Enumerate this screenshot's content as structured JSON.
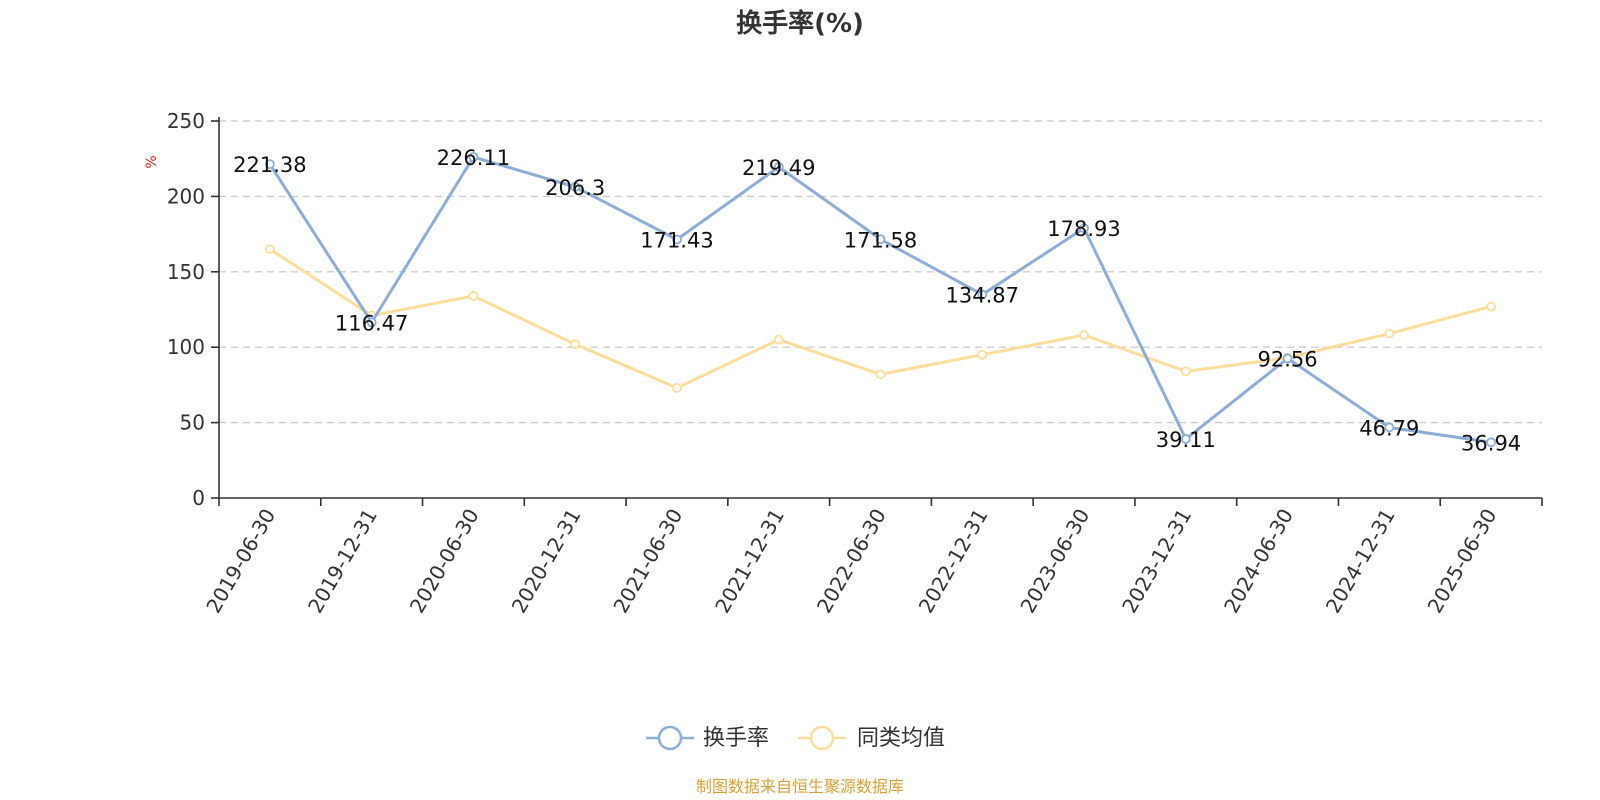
{
  "chart_data": {
    "type": "line",
    "title": "换手率(%)",
    "ylabel": "%",
    "xlabel": "",
    "ylim": [
      0,
      250
    ],
    "yticks": [
      0,
      50,
      100,
      150,
      200,
      250
    ],
    "grid": true,
    "legend_position": "bottom-center",
    "categories": [
      "2019-06-30",
      "2019-12-31",
      "2020-06-30",
      "2020-12-31",
      "2021-06-30",
      "2021-12-31",
      "2022-06-30",
      "2022-12-31",
      "2023-06-30",
      "2023-12-31",
      "2024-06-30",
      "2024-12-31",
      "2025-06-30"
    ],
    "series": [
      {
        "name": "换手率",
        "color": "#8eadd6",
        "values": [
          221.38,
          116.47,
          226.11,
          206.3,
          171.43,
          219.49,
          171.58,
          134.87,
          178.93,
          39.11,
          92.56,
          46.79,
          36.94
        ],
        "labels": [
          "221.38",
          "116.47",
          "226.11",
          "206.3",
          "171.43",
          "219.49",
          "171.58",
          "134.87",
          "178.93",
          "39.11",
          "92.56",
          "46.79",
          "36.94"
        ]
      },
      {
        "name": "同类均值",
        "color": "#fbdc9b",
        "values": [
          165,
          121,
          134,
          102,
          73,
          105,
          82,
          95,
          108,
          84,
          93,
          109,
          127
        ]
      }
    ]
  },
  "source_text": "制图数据来自恒生聚源数据库",
  "colors": {
    "axis": "#333333",
    "grid": "#cccccc",
    "unit": "#e02020",
    "source": "#d4a237"
  }
}
